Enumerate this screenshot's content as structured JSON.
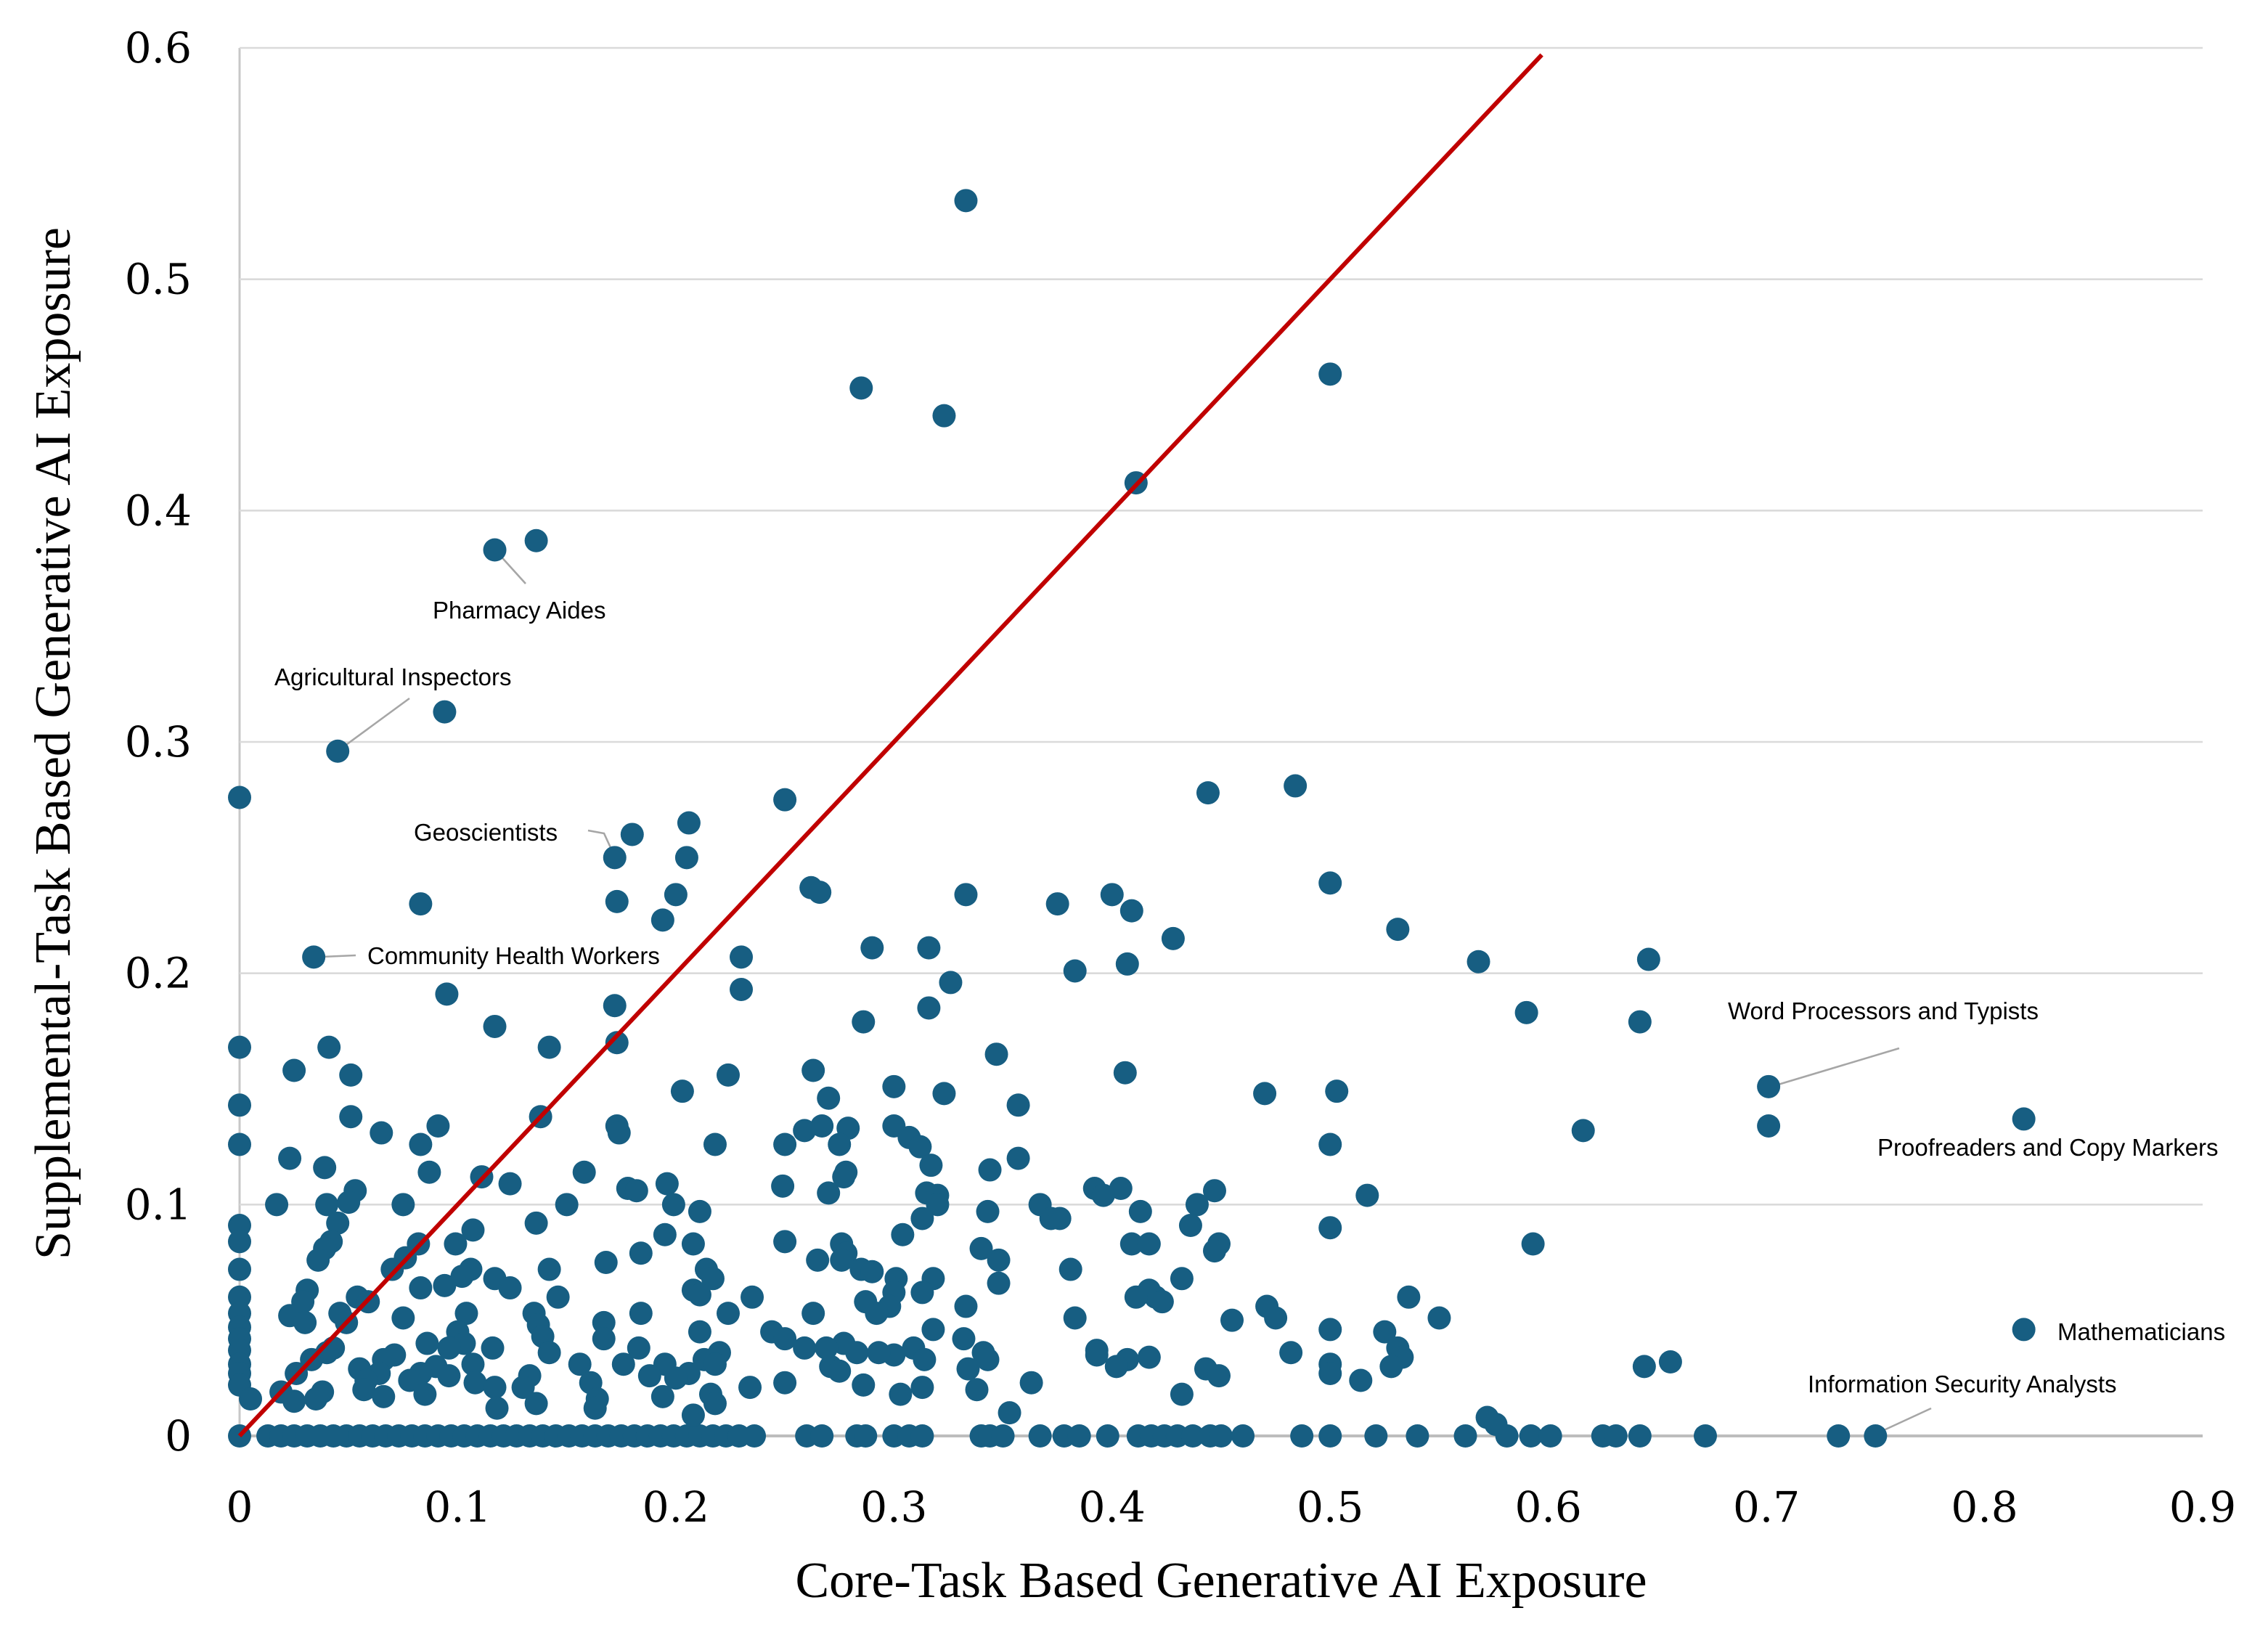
{
  "chart_data": {
    "type": "scatter",
    "xlabel": "Core-Task Based Generative AI Exposure",
    "ylabel": "Supplemental-Task Based Generative AI Exposure",
    "xlim": [
      0,
      0.9
    ],
    "ylim": [
      0,
      0.6
    ],
    "x_ticks": [
      "0",
      "0.1",
      "0.2",
      "0.3",
      "0.4",
      "0.5",
      "0.6",
      "0.7",
      "0.8",
      "0.9"
    ],
    "y_ticks": [
      "0",
      "0.1",
      "0.2",
      "0.3",
      "0.4",
      "0.5",
      "0.6"
    ],
    "grid": "horizontal",
    "legend": "none",
    "marker_color": "#175e82",
    "reference_line": {
      "type": "y = x",
      "color": "#c00000",
      "x_range": [
        0,
        0.597
      ]
    },
    "annotations": [
      {
        "label": "Pharmacy Aides",
        "x": 0.117,
        "y": 0.383
      },
      {
        "label": "Agricultural Inspectors",
        "x": 0.045,
        "y": 0.296
      },
      {
        "label": "Geoscientists",
        "x": 0.172,
        "y": 0.25
      },
      {
        "label": "Community Health Workers",
        "x": 0.034,
        "y": 0.207
      },
      {
        "label": "Word Processors and Typists",
        "x": 0.701,
        "y": 0.151
      },
      {
        "label": "Proofreaders and Copy Markers",
        "x": 0.818,
        "y": 0.137
      },
      {
        "label": "Mathematicians",
        "x": 0.818,
        "y": 0.046
      },
      {
        "label": "Information Security Analysts",
        "x": 0.75,
        "y": 0
      }
    ],
    "points": [
      [
        0.333,
        0.534
      ],
      [
        0.285,
        0.453
      ],
      [
        0.323,
        0.441
      ],
      [
        0.5,
        0.459
      ],
      [
        0.411,
        0.412
      ],
      [
        0.117,
        0.383
      ],
      [
        0.136,
        0.387
      ],
      [
        0.045,
        0.296
      ],
      [
        0.094,
        0.313
      ],
      [
        0,
        0.276
      ],
      [
        0.25,
        0.275
      ],
      [
        0.444,
        0.278
      ],
      [
        0.484,
        0.281
      ],
      [
        0.18,
        0.26
      ],
      [
        0.206,
        0.265
      ],
      [
        0.172,
        0.25
      ],
      [
        0.205,
        0.25
      ],
      [
        0.262,
        0.237
      ],
      [
        0.266,
        0.235
      ],
      [
        0.333,
        0.234
      ],
      [
        0.2,
        0.234
      ],
      [
        0.4,
        0.234
      ],
      [
        0.5,
        0.239
      ],
      [
        0.083,
        0.23
      ],
      [
        0.173,
        0.231
      ],
      [
        0.375,
        0.23
      ],
      [
        0.409,
        0.227
      ],
      [
        0.194,
        0.223
      ],
      [
        0.531,
        0.219
      ],
      [
        0.428,
        0.215
      ],
      [
        0.29,
        0.211
      ],
      [
        0.316,
        0.211
      ],
      [
        0.034,
        0.207
      ],
      [
        0.23,
        0.207
      ],
      [
        0.568,
        0.205
      ],
      [
        0.646,
        0.206
      ],
      [
        0.407,
        0.204
      ],
      [
        0.383,
        0.201
      ],
      [
        0.326,
        0.196
      ],
      [
        0.23,
        0.193
      ],
      [
        0.095,
        0.191
      ],
      [
        0.172,
        0.186
      ],
      [
        0.316,
        0.185
      ],
      [
        0.59,
        0.183
      ],
      [
        0.642,
        0.179
      ],
      [
        0.117,
        0.177
      ],
      [
        0.286,
        0.179
      ],
      [
        0,
        0.168
      ],
      [
        0.041,
        0.168
      ],
      [
        0.142,
        0.168
      ],
      [
        0.173,
        0.17
      ],
      [
        0.347,
        0.165
      ],
      [
        0.263,
        0.158
      ],
      [
        0.025,
        0.158
      ],
      [
        0.051,
        0.156
      ],
      [
        0.406,
        0.157
      ],
      [
        0.224,
        0.156
      ],
      [
        0.701,
        0.151
      ],
      [
        0.3,
        0.151
      ],
      [
        0.503,
        0.149
      ],
      [
        0.47,
        0.148
      ],
      [
        0.203,
        0.149
      ],
      [
        0.323,
        0.148
      ],
      [
        0.27,
        0.146
      ],
      [
        0,
        0.143
      ],
      [
        0.357,
        0.143
      ],
      [
        0.051,
        0.138
      ],
      [
        0.138,
        0.138
      ],
      [
        0.818,
        0.137
      ],
      [
        0.701,
        0.134
      ],
      [
        0.065,
        0.131
      ],
      [
        0.091,
        0.134
      ],
      [
        0.173,
        0.134
      ],
      [
        0.267,
        0.134
      ],
      [
        0.279,
        0.133
      ],
      [
        0.3,
        0.134
      ],
      [
        0.174,
        0.131
      ],
      [
        0.259,
        0.132
      ],
      [
        0.616,
        0.132
      ],
      [
        0.307,
        0.129
      ],
      [
        0,
        0.126
      ],
      [
        0.083,
        0.126
      ],
      [
        0.25,
        0.126
      ],
      [
        0.275,
        0.126
      ],
      [
        0.218,
        0.126
      ],
      [
        0.5,
        0.126
      ],
      [
        0.312,
        0.125
      ],
      [
        0.357,
        0.12
      ],
      [
        0.023,
        0.12
      ],
      [
        0.317,
        0.117
      ],
      [
        0.039,
        0.116
      ],
      [
        0.087,
        0.114
      ],
      [
        0.158,
        0.114
      ],
      [
        0.344,
        0.115
      ],
      [
        0.278,
        0.114
      ],
      [
        0.111,
        0.112
      ],
      [
        0.277,
        0.112
      ],
      [
        0.196,
        0.109
      ],
      [
        0.124,
        0.109
      ],
      [
        0.249,
        0.108
      ],
      [
        0.178,
        0.107
      ],
      [
        0.182,
        0.106
      ],
      [
        0.392,
        0.107
      ],
      [
        0.404,
        0.107
      ],
      [
        0.447,
        0.106
      ],
      [
        0.27,
        0.105
      ],
      [
        0.315,
        0.105
      ],
      [
        0.053,
        0.106
      ],
      [
        0.32,
        0.104
      ],
      [
        0.396,
        0.104
      ],
      [
        0.517,
        0.104
      ],
      [
        0.439,
        0.1
      ],
      [
        0.075,
        0.1
      ],
      [
        0.04,
        0.1
      ],
      [
        0.017,
        0.1
      ],
      [
        0.15,
        0.1
      ],
      [
        0.199,
        0.1
      ],
      [
        0.05,
        0.101
      ],
      [
        0.367,
        0.1
      ],
      [
        0.32,
        0.1
      ],
      [
        0.413,
        0.097
      ],
      [
        0.343,
        0.097
      ],
      [
        0.211,
        0.097
      ],
      [
        0.372,
        0.094
      ],
      [
        0.313,
        0.094
      ],
      [
        0.376,
        0.094
      ],
      [
        0,
        0.091
      ],
      [
        0.136,
        0.092
      ],
      [
        0.045,
        0.092
      ],
      [
        0.436,
        0.091
      ],
      [
        0.107,
        0.089
      ],
      [
        0.304,
        0.087
      ],
      [
        0.195,
        0.087
      ],
      [
        0.5,
        0.09
      ],
      [
        0,
        0.084
      ],
      [
        0.042,
        0.084
      ],
      [
        0.082,
        0.083
      ],
      [
        0.099,
        0.083
      ],
      [
        0.208,
        0.083
      ],
      [
        0.25,
        0.084
      ],
      [
        0.276,
        0.083
      ],
      [
        0.409,
        0.083
      ],
      [
        0.417,
        0.083
      ],
      [
        0.593,
        0.083
      ],
      [
        0.449,
        0.083
      ],
      [
        0.039,
        0.081
      ],
      [
        0.34,
        0.081
      ],
      [
        0.447,
        0.08
      ],
      [
        0.184,
        0.079
      ],
      [
        0.278,
        0.079
      ],
      [
        0.036,
        0.076
      ],
      [
        0.076,
        0.077
      ],
      [
        0.348,
        0.076
      ],
      [
        0.276,
        0.076
      ],
      [
        0.168,
        0.075
      ],
      [
        0.265,
        0.076
      ],
      [
        0,
        0.072
      ],
      [
        0.07,
        0.072
      ],
      [
        0.106,
        0.072
      ],
      [
        0.142,
        0.072
      ],
      [
        0.214,
        0.072
      ],
      [
        0.285,
        0.072
      ],
      [
        0.381,
        0.072
      ],
      [
        0.29,
        0.071
      ],
      [
        0.102,
        0.069
      ],
      [
        0.217,
        0.068
      ],
      [
        0.301,
        0.068
      ],
      [
        0.318,
        0.068
      ],
      [
        0.117,
        0.068
      ],
      [
        0.432,
        0.068
      ],
      [
        0.094,
        0.065
      ],
      [
        0.124,
        0.064
      ],
      [
        0.083,
        0.064
      ],
      [
        0.208,
        0.063
      ],
      [
        0.348,
        0.066
      ],
      [
        0.3,
        0.062
      ],
      [
        0.031,
        0.063
      ],
      [
        0.211,
        0.061
      ],
      [
        0.313,
        0.062
      ],
      [
        0.417,
        0.063
      ],
      [
        0.054,
        0.06
      ],
      [
        0,
        0.06
      ],
      [
        0.146,
        0.06
      ],
      [
        0.235,
        0.06
      ],
      [
        0.42,
        0.06
      ],
      [
        0.411,
        0.06
      ],
      [
        0.536,
        0.06
      ],
      [
        0.059,
        0.058
      ],
      [
        0.029,
        0.058
      ],
      [
        0.287,
        0.058
      ],
      [
        0.298,
        0.056
      ],
      [
        0.333,
        0.056
      ],
      [
        0.423,
        0.058
      ],
      [
        0.471,
        0.056
      ],
      [
        0.046,
        0.053
      ],
      [
        0,
        0.053
      ],
      [
        0.184,
        0.053
      ],
      [
        0.224,
        0.053
      ],
      [
        0.263,
        0.053
      ],
      [
        0.135,
        0.053
      ],
      [
        0.023,
        0.052
      ],
      [
        0.104,
        0.053
      ],
      [
        0.292,
        0.053
      ],
      [
        0.55,
        0.051
      ],
      [
        0.075,
        0.051
      ],
      [
        0.383,
        0.051
      ],
      [
        0.455,
        0.05
      ],
      [
        0.475,
        0.051
      ],
      [
        0,
        0.047
      ],
      [
        0.03,
        0.049
      ],
      [
        0.049,
        0.049
      ],
      [
        0.167,
        0.049
      ],
      [
        0.137,
        0.048
      ],
      [
        0.5,
        0.046
      ],
      [
        0.818,
        0.046
      ],
      [
        0.525,
        0.045
      ],
      [
        0.244,
        0.045
      ],
      [
        0.318,
        0.046
      ],
      [
        0.211,
        0.045
      ],
      [
        0.1,
        0.045
      ],
      [
        0,
        0.042
      ],
      [
        0.139,
        0.043
      ],
      [
        0.167,
        0.042
      ],
      [
        0.25,
        0.042
      ],
      [
        0.332,
        0.042
      ],
      [
        0.103,
        0.04
      ],
      [
        0.277,
        0.04
      ],
      [
        0.086,
        0.04
      ],
      [
        0.043,
        0.038
      ],
      [
        0.183,
        0.038
      ],
      [
        0.116,
        0.038
      ],
      [
        0.259,
        0.038
      ],
      [
        0.531,
        0.038
      ],
      [
        0.269,
        0.038
      ],
      [
        0.096,
        0.038
      ],
      [
        0,
        0.037
      ],
      [
        0.309,
        0.038
      ],
      [
        0.482,
        0.036
      ],
      [
        0.142,
        0.036
      ],
      [
        0.3,
        0.035
      ],
      [
        0.283,
        0.036
      ],
      [
        0.04,
        0.036
      ],
      [
        0.071,
        0.035
      ],
      [
        0.341,
        0.036
      ],
      [
        0.293,
        0.036
      ],
      [
        0.22,
        0.036
      ],
      [
        0.533,
        0.034
      ],
      [
        0.393,
        0.037
      ],
      [
        0.393,
        0.035
      ],
      [
        0.213,
        0.033
      ],
      [
        0.417,
        0.034
      ],
      [
        0.314,
        0.033
      ],
      [
        0.343,
        0.033
      ],
      [
        0.066,
        0.033
      ],
      [
        0.033,
        0.033
      ],
      [
        0.407,
        0.033
      ],
      [
        0,
        0.031
      ],
      [
        0.5,
        0.031
      ],
      [
        0.656,
        0.032
      ],
      [
        0.156,
        0.031
      ],
      [
        0.218,
        0.031
      ],
      [
        0.176,
        0.031
      ],
      [
        0.195,
        0.031
      ],
      [
        0.107,
        0.031
      ],
      [
        0.09,
        0.03
      ],
      [
        0.271,
        0.03
      ],
      [
        0.528,
        0.03
      ],
      [
        0.644,
        0.03
      ],
      [
        0.275,
        0.028
      ],
      [
        0.055,
        0.029
      ],
      [
        0.334,
        0.029
      ],
      [
        0.402,
        0.03
      ],
      [
        0.443,
        0.029
      ],
      [
        0,
        0.027
      ],
      [
        0.083,
        0.027
      ],
      [
        0.5,
        0.027
      ],
      [
        0.206,
        0.027
      ],
      [
        0.026,
        0.027
      ],
      [
        0.064,
        0.027
      ],
      [
        0.188,
        0.026
      ],
      [
        0.096,
        0.026
      ],
      [
        0.133,
        0.026
      ],
      [
        0.449,
        0.026
      ],
      [
        0.514,
        0.024
      ],
      [
        0.2,
        0.025
      ],
      [
        0.078,
        0.024
      ],
      [
        0.058,
        0.024
      ],
      [
        0.161,
        0.023
      ],
      [
        0.363,
        0.023
      ],
      [
        0.25,
        0.023
      ],
      [
        0.108,
        0.023
      ],
      [
        0,
        0.022
      ],
      [
        0.117,
        0.021
      ],
      [
        0.234,
        0.021
      ],
      [
        0.286,
        0.022
      ],
      [
        0.313,
        0.021
      ],
      [
        0.057,
        0.02
      ],
      [
        0.085,
        0.018
      ],
      [
        0.019,
        0.019
      ],
      [
        0.13,
        0.021
      ],
      [
        0.216,
        0.018
      ],
      [
        0.303,
        0.018
      ],
      [
        0.338,
        0.02
      ],
      [
        0.432,
        0.018
      ],
      [
        0.038,
        0.019
      ],
      [
        0.194,
        0.017
      ],
      [
        0.164,
        0.016
      ],
      [
        0.066,
        0.017
      ],
      [
        0.035,
        0.016
      ],
      [
        0.136,
        0.014
      ],
      [
        0.025,
        0.015
      ],
      [
        0.218,
        0.014
      ],
      [
        0.118,
        0.012
      ],
      [
        0.005,
        0.016
      ],
      [
        0.163,
        0.012
      ],
      [
        0.353,
        0.01
      ],
      [
        0.572,
        0.008
      ],
      [
        0.208,
        0.009
      ],
      [
        0.576,
        0.005
      ]
    ],
    "zero_row_x": [
      0,
      0.013,
      0.019,
      0.025,
      0.031,
      0.037,
      0.043,
      0.049,
      0.055,
      0.061,
      0.067,
      0.073,
      0.079,
      0.085,
      0.091,
      0.097,
      0.103,
      0.109,
      0.115,
      0.121,
      0.127,
      0.133,
      0.139,
      0.145,
      0.151,
      0.157,
      0.163,
      0.169,
      0.175,
      0.181,
      0.187,
      0.193,
      0.199,
      0.205,
      0.211,
      0.217,
      0.223,
      0.229,
      0.236,
      0.26,
      0.267,
      0.283,
      0.287,
      0.3,
      0.307,
      0.313,
      0.34,
      0.344,
      0.35,
      0.367,
      0.378,
      0.385,
      0.398,
      0.412,
      0.418,
      0.424,
      0.43,
      0.437,
      0.445,
      0.45,
      0.46,
      0.487,
      0.5,
      0.521,
      0.54,
      0.562,
      0.581,
      0.592,
      0.601,
      0.625,
      0.631,
      0.642,
      0.672,
      0.733,
      0.75
    ]
  }
}
